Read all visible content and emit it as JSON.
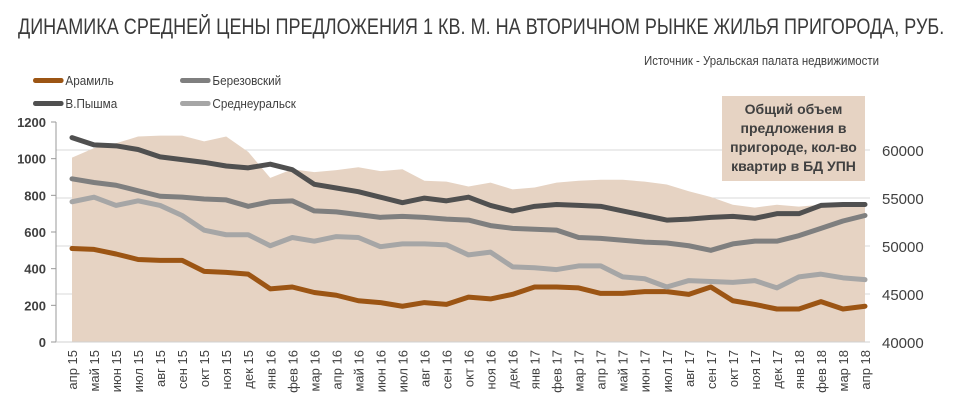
{
  "chart_data": {
    "type": "line",
    "title": "ДИНАМИКА СРЕДНЕЙ ЦЕНЫ ПРЕДЛОЖЕНИЯ 1 КВ. М. НА ВТОРИЧНОМ РЫНКЕ ЖИЛЬЯ ПРИГОРОДА, РУБ.",
    "source": "Источник - Уральская палата недвижимости",
    "categories": [
      "апр 15",
      "май 15",
      "июн 15",
      "июл 15",
      "авг 15",
      "сен 15",
      "окт 15",
      "ноя 15",
      "дек 15",
      "янв 16",
      "фев 16",
      "мар 16",
      "апр 16",
      "май 16",
      "июн 16",
      "июл 16",
      "авг 16",
      "сен 16",
      "окт 16",
      "ноя 16",
      "дек 16",
      "янв 17",
      "фев 17",
      "мар 17",
      "апр 17",
      "май 17",
      "июн 17",
      "июл 17",
      "авг 17",
      "сен 17",
      "окт 17",
      "ноя 17",
      "дек 17",
      "янв 18",
      "фев 18",
      "мар 18",
      "апр 18"
    ],
    "y_left": {
      "ylim": [
        0,
        1200
      ],
      "ticks": [
        0,
        200,
        400,
        600,
        800,
        1000,
        1200
      ]
    },
    "y_right": {
      "ylim": [
        40000,
        62000
      ],
      "ticks": [
        40000,
        45000,
        50000,
        55000,
        60000
      ]
    },
    "grid": true,
    "legend_position": "top-left",
    "area": {
      "label": "Общий объем предложения в пригороде, кол-во квартир в БД УПН",
      "axis": "right",
      "color": "#e6d3c3",
      "values": [
        59200,
        60200,
        60700,
        61400,
        61500,
        61500,
        60900,
        61400,
        59800,
        57100,
        58000,
        57700,
        57900,
        58200,
        57800,
        58000,
        56800,
        56700,
        56200,
        56600,
        55900,
        56100,
        56600,
        56800,
        56900,
        56900,
        56700,
        56400,
        55700,
        55100,
        54300,
        54000,
        54300,
        54100,
        54300,
        54300,
        54300
      ]
    },
    "series": [
      {
        "name": "Арамиль",
        "color": "#9c5514",
        "axis": "left",
        "values": [
          510,
          505,
          480,
          450,
          445,
          445,
          385,
          380,
          370,
          290,
          300,
          270,
          255,
          225,
          215,
          195,
          215,
          205,
          245,
          235,
          260,
          300,
          300,
          295,
          265,
          265,
          275,
          275,
          260,
          300,
          225,
          205,
          180,
          180,
          220,
          180,
          195
        ]
      },
      {
        "name": "Березовский",
        "color": "#7f7f7f",
        "axis": "left",
        "values": [
          890,
          870,
          855,
          825,
          795,
          790,
          780,
          775,
          740,
          765,
          770,
          715,
          710,
          695,
          680,
          685,
          680,
          670,
          665,
          635,
          620,
          615,
          610,
          570,
          565,
          555,
          545,
          540,
          525,
          500,
          535,
          550,
          550,
          580,
          620,
          660,
          690
        ]
      },
      {
        "name": "В.Пышма",
        "color": "#505050",
        "axis": "left",
        "values": [
          1115,
          1075,
          1070,
          1050,
          1010,
          995,
          980,
          960,
          950,
          970,
          940,
          860,
          840,
          820,
          790,
          760,
          785,
          770,
          790,
          745,
          715,
          740,
          750,
          745,
          740,
          715,
          690,
          665,
          670,
          680,
          685,
          675,
          700,
          700,
          745,
          750,
          750
        ]
      },
      {
        "name": "Среднеуральск",
        "color": "#a6a6a6",
        "axis": "left",
        "values": [
          765,
          790,
          745,
          770,
          745,
          690,
          610,
          585,
          585,
          525,
          570,
          550,
          575,
          570,
          520,
          535,
          535,
          530,
          475,
          490,
          410,
          405,
          395,
          415,
          415,
          355,
          345,
          300,
          335,
          330,
          325,
          335,
          295,
          355,
          370,
          350,
          340
        ]
      }
    ]
  }
}
